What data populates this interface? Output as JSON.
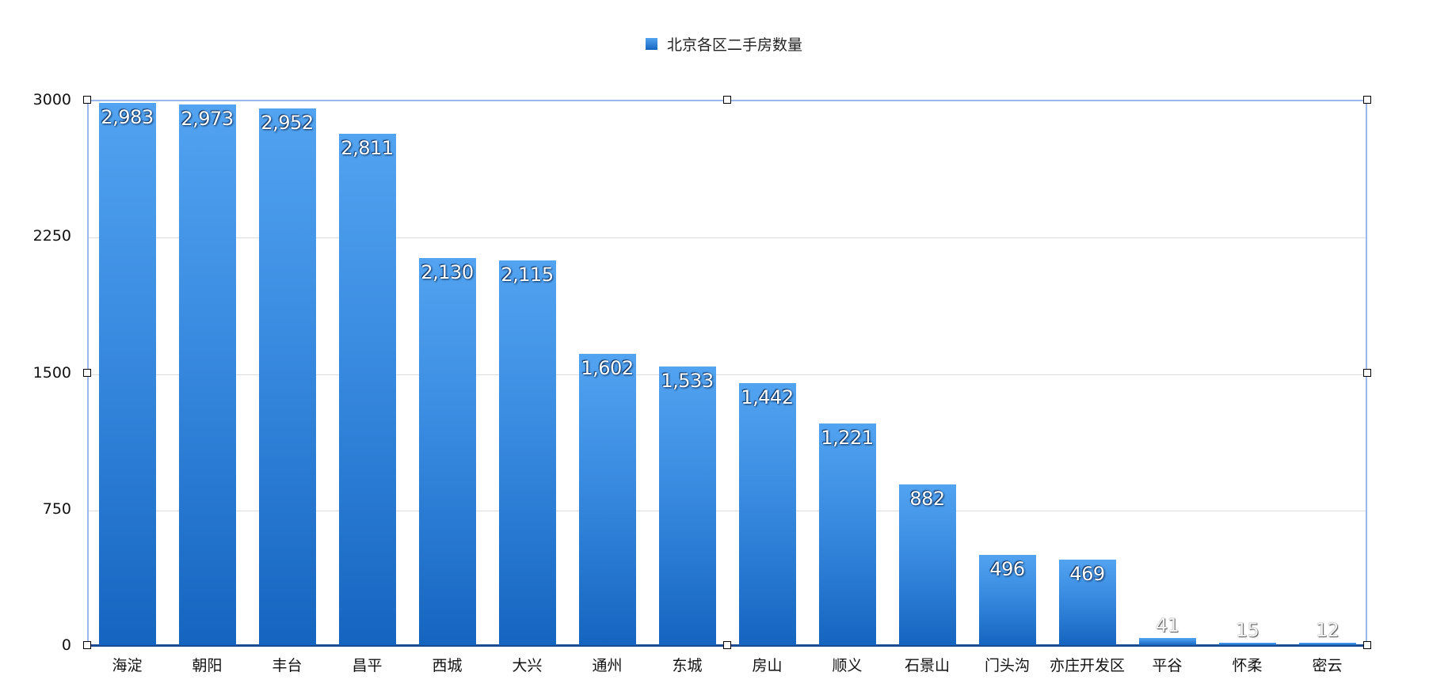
{
  "chart_data": {
    "type": "bar",
    "title": "",
    "legend": {
      "position": "top",
      "entries": [
        "北京各区二手房数量"
      ]
    },
    "series": [
      {
        "name": "北京各区二手房数量",
        "values": [
          2983,
          2973,
          2952,
          2811,
          2130,
          2115,
          1602,
          1533,
          1442,
          1221,
          882,
          496,
          469,
          41,
          15,
          12
        ],
        "value_labels": [
          "2,983",
          "2,973",
          "2,952",
          "2,811",
          "2,130",
          "2,115",
          "1,602",
          "1,533",
          "1,442",
          "1,221",
          "882",
          "496",
          "469",
          "41",
          "15",
          "12"
        ]
      }
    ],
    "categories": [
      "海淀",
      "朝阳",
      "丰台",
      "昌平",
      "西城",
      "大兴",
      "通州",
      "东城",
      "房山",
      "顺义",
      "石景山",
      "门头沟",
      "亦庄开发区",
      "平谷",
      "怀柔",
      "密云"
    ],
    "xlabel": "",
    "ylabel": "",
    "ylim": [
      0,
      3000
    ],
    "yticks": [
      "0",
      "750",
      "1500",
      "2250",
      "3000"
    ],
    "grid": true,
    "colors": {
      "bar_top": "#52a3f0",
      "bar_bottom": "#1565c0",
      "frame": "#9ab8ee",
      "baseline": "#1e4b8f"
    }
  }
}
